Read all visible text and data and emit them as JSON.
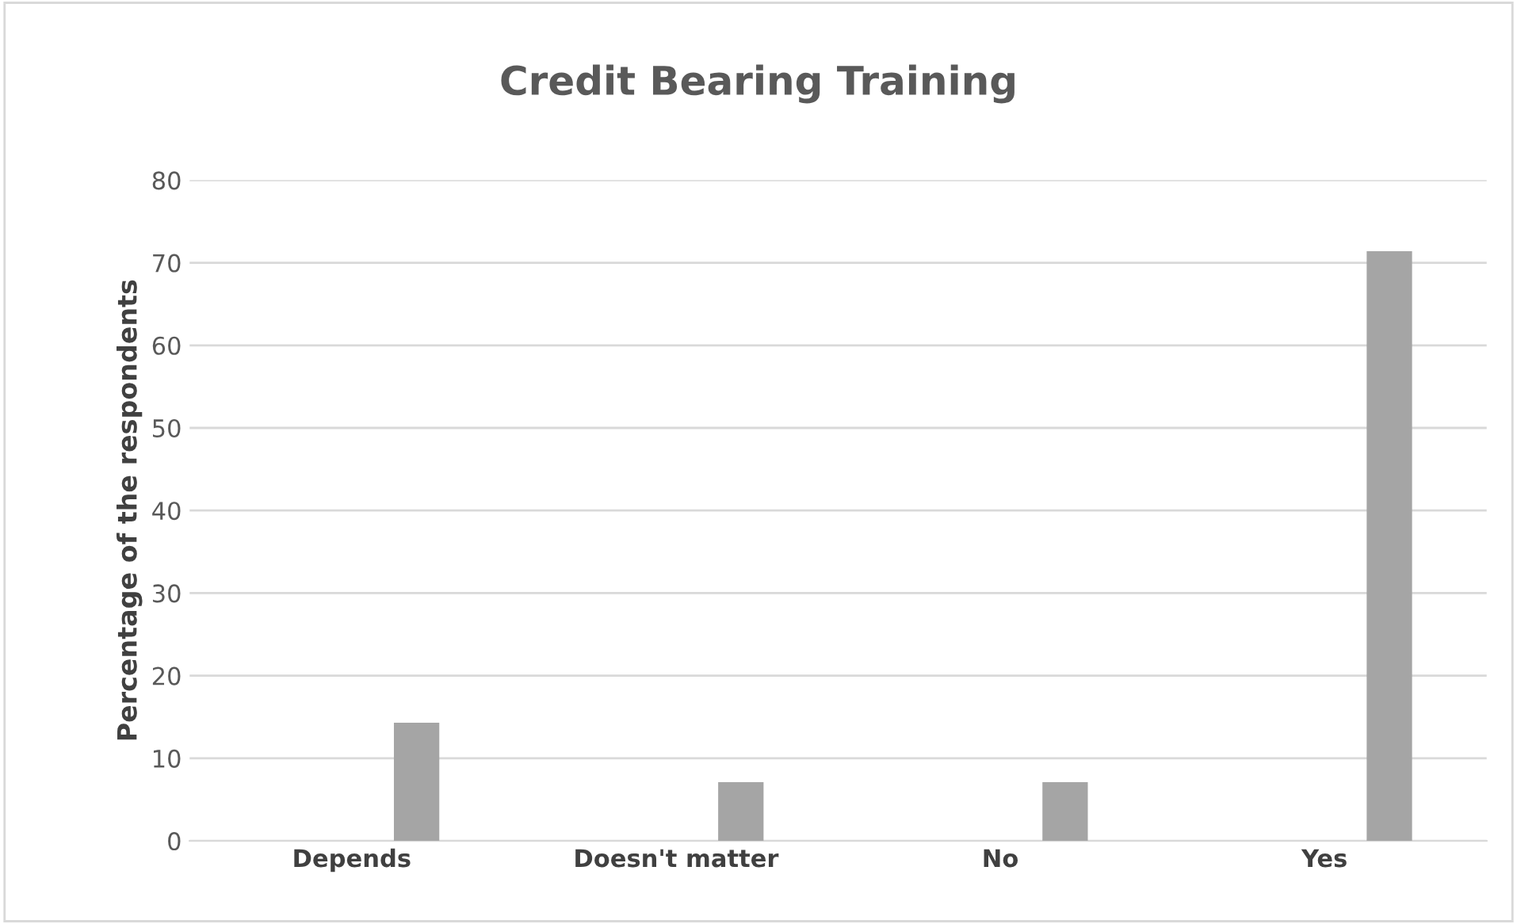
{
  "chart_data": {
    "type": "bar",
    "title": "Credit Bearing Training",
    "ylabel": "Percentage of the respondents",
    "categories": [
      "Depends",
      "Doesn't matter",
      "No",
      "Yes"
    ],
    "series": [
      {
        "color": "#a5a5a5",
        "values": [
          null,
          null,
          null,
          null
        ]
      },
      {
        "color": "#a5a5a5",
        "values": [
          14.3,
          7.1,
          7.1,
          71.4
        ]
      }
    ],
    "ylim": [
      0,
      80
    ],
    "yticks": [
      0,
      10,
      20,
      30,
      40,
      50,
      60,
      70,
      80
    ],
    "grid": "y",
    "legend": false
  }
}
